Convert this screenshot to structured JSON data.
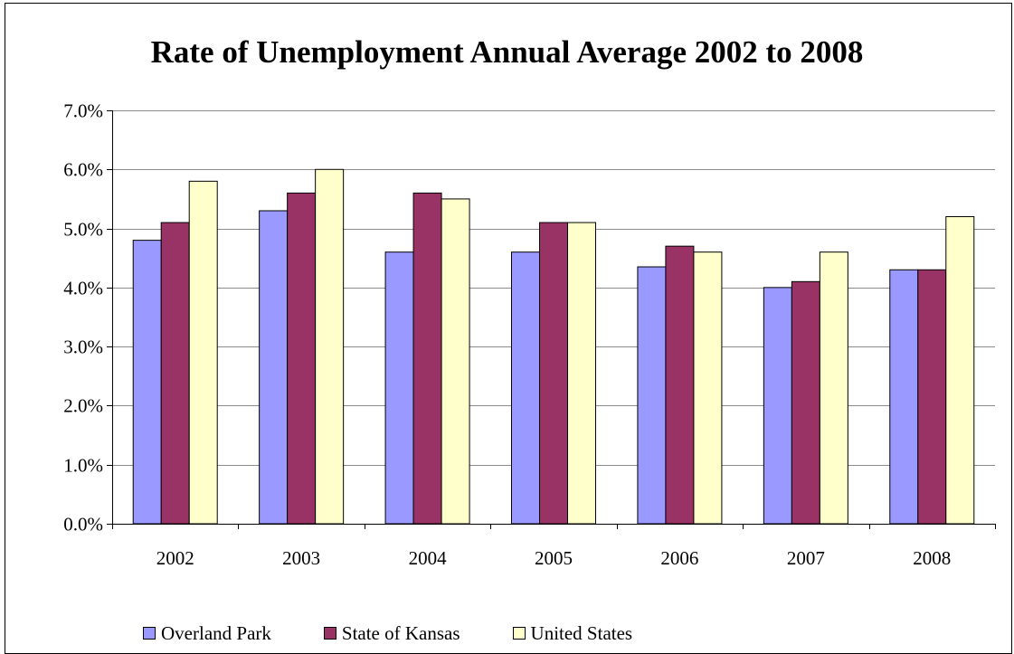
{
  "chart_data": {
    "type": "bar",
    "title": "Rate of Unemployment Annual Average 2002 to 2008",
    "categories": [
      "2002",
      "2003",
      "2004",
      "2005",
      "2006",
      "2007",
      "2008"
    ],
    "series": [
      {
        "name": "Overland Park",
        "color": "#9999ff",
        "values": [
          4.8,
          5.3,
          4.6,
          4.6,
          4.35,
          4.0,
          4.3
        ]
      },
      {
        "name": "State of Kansas",
        "color": "#993366",
        "values": [
          5.1,
          5.6,
          5.6,
          5.1,
          4.7,
          4.1,
          4.3
        ]
      },
      {
        "name": "United States",
        "color": "#ffffcc",
        "values": [
          5.8,
          6.0,
          5.5,
          5.1,
          4.6,
          4.6,
          5.2
        ]
      }
    ],
    "yticks": [
      "0.0%",
      "1.0%",
      "2.0%",
      "3.0%",
      "4.0%",
      "5.0%",
      "6.0%",
      "7.0%"
    ],
    "ylim": [
      0,
      7
    ],
    "xlabel": "",
    "ylabel": "",
    "grid": true,
    "legend_position": "bottom"
  }
}
